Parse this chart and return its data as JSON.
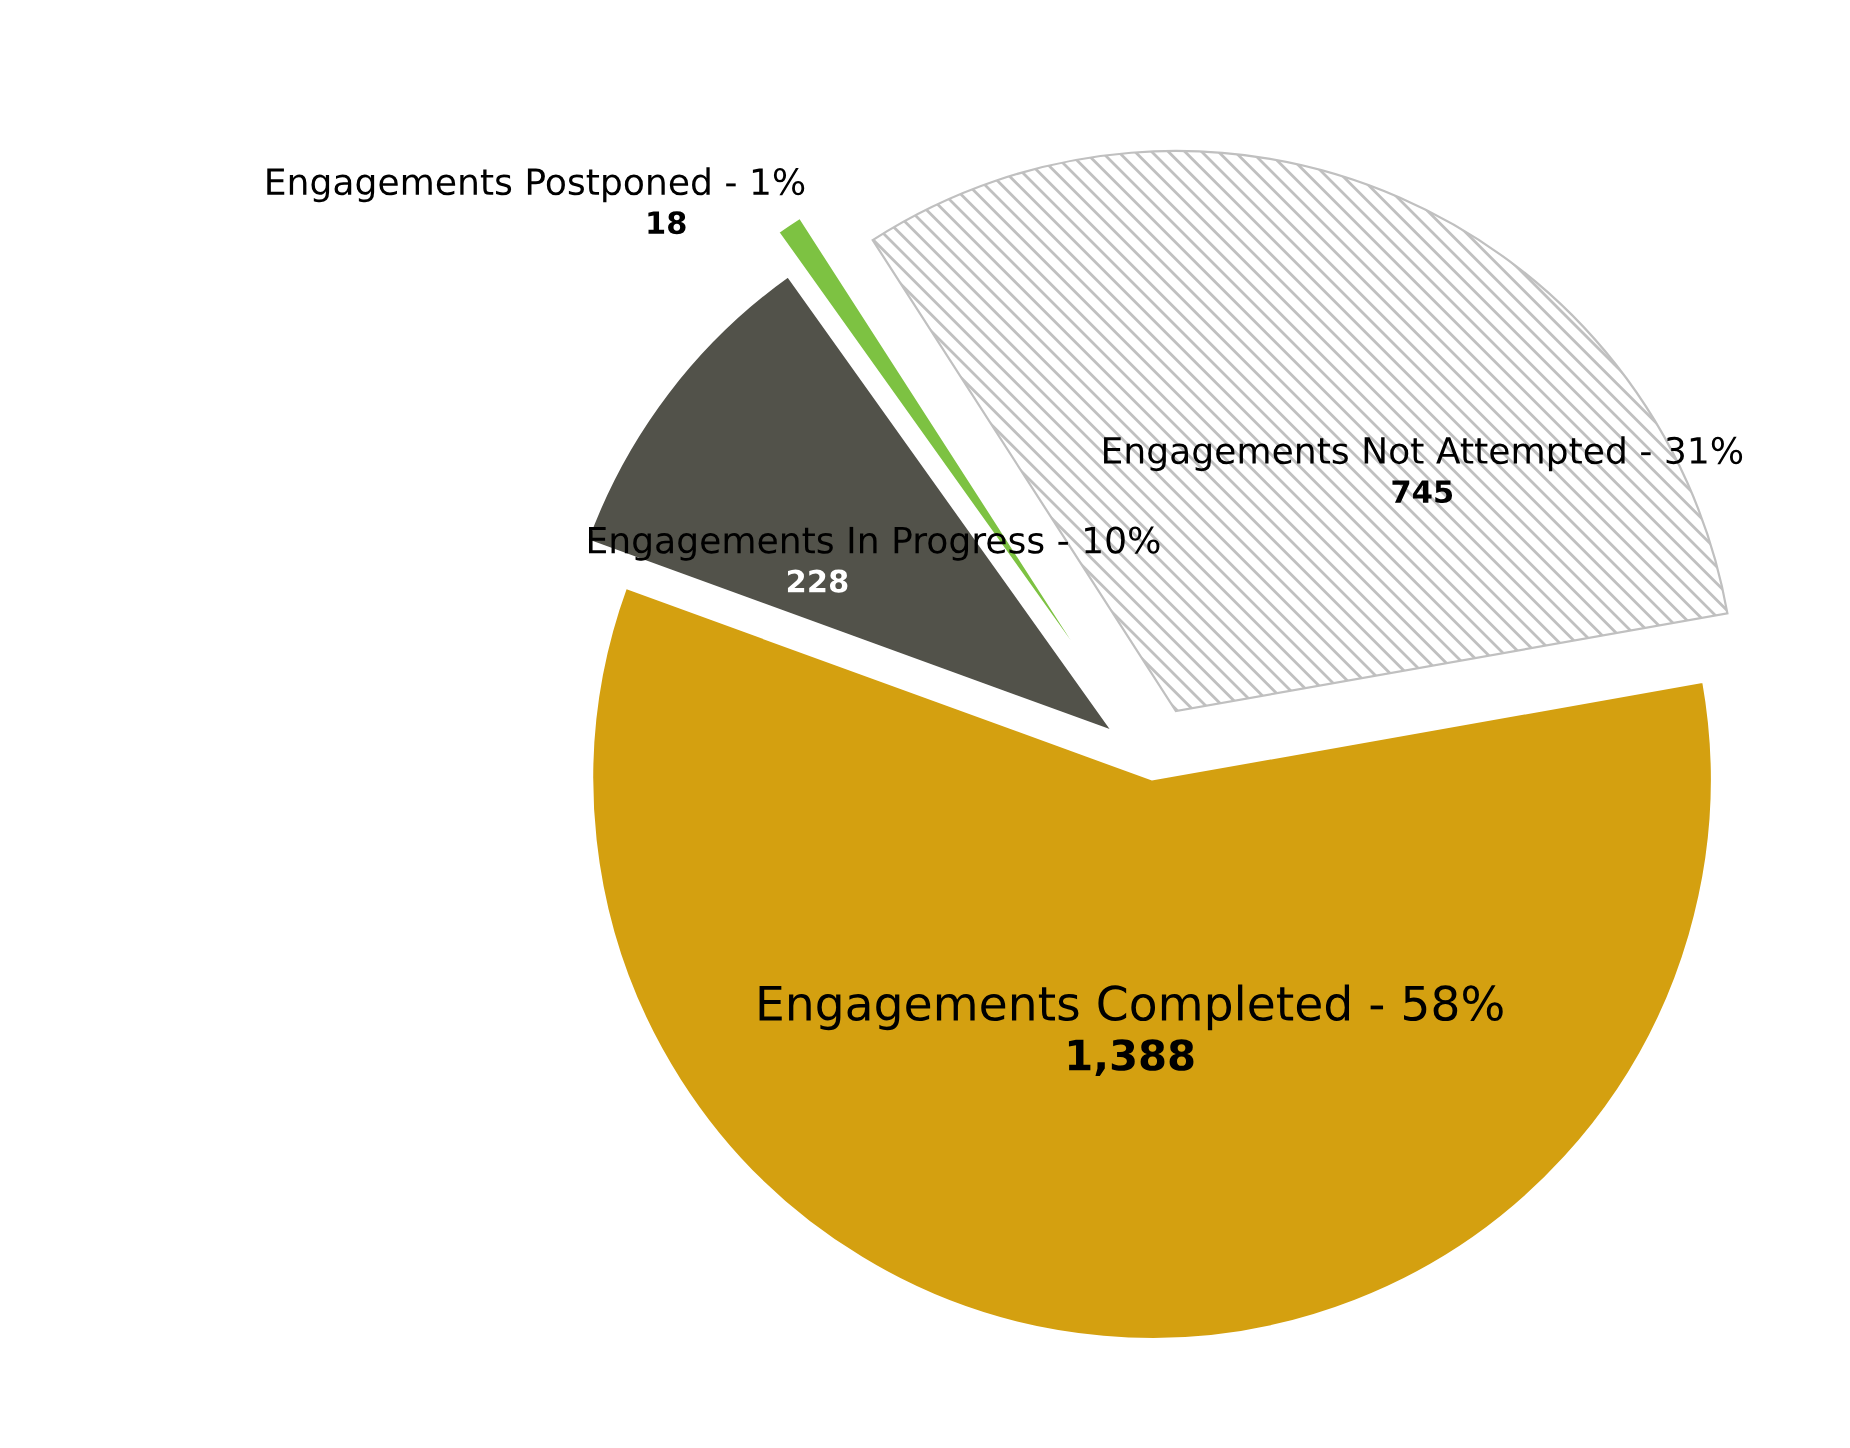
{
  "chart_data": {
    "type": "pie",
    "categories": [
      "Engagements Completed - 58%",
      "Engagements Not Attempted - 31%",
      "Engagements Postponed - 1%",
      "Engagements In Progress - 10%"
    ],
    "values": [
      1388,
      745,
      18,
      228
    ],
    "value_labels": [
      "1,388",
      "745",
      "18",
      "228"
    ],
    "colors": [
      "#d4a010",
      "#c0c0c0",
      "#7dc242",
      "#52524a"
    ],
    "legend": false
  }
}
